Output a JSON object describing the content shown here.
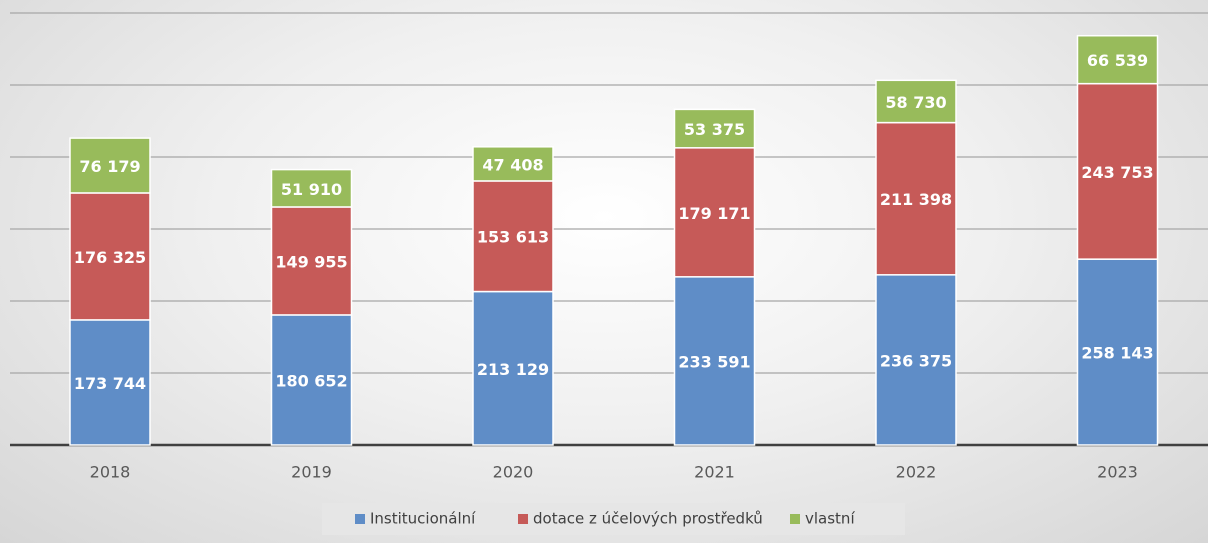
{
  "chart_data": {
    "type": "stacked_bar",
    "categories": [
      "2018",
      "2019",
      "2020",
      "2021",
      "2022",
      "2023"
    ],
    "series": [
      {
        "name": "Institucionální",
        "color": "#5f8dc7",
        "values": [
          173744,
          180652,
          213129,
          233591,
          236375,
          258143
        ],
        "value_labels": [
          "173 744",
          "180 652",
          "213 129",
          "233 591",
          "236 375",
          "258 143"
        ]
      },
      {
        "name": "dotace z účelových prostředků",
        "color": "#c65a58",
        "values": [
          176325,
          149955,
          153613,
          179171,
          211398,
          243753
        ],
        "value_labels": [
          "176 325",
          "149 955",
          "153 613",
          "179 171",
          "211 398",
          "243 753"
        ]
      },
      {
        "name": "vlastní",
        "color": "#98bb5b",
        "values": [
          76179,
          51910,
          47408,
          53375,
          58730,
          66539
        ],
        "value_labels": [
          "76 179",
          "51 910",
          "47 408",
          "53 375",
          "58 730",
          "66 539"
        ]
      }
    ],
    "ylim": [
      0,
      600000
    ],
    "yticks": [
      0,
      100000,
      200000,
      300000,
      400000,
      500000,
      600000
    ],
    "grid": true,
    "legend": "bottom"
  }
}
